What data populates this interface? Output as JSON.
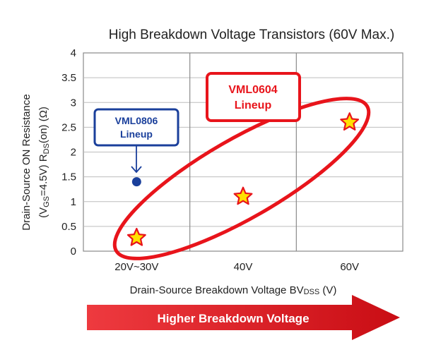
{
  "chart_data": {
    "type": "scatter",
    "title": "High Breakdown Voltage Transistors (60V Max.)",
    "xlabel": {
      "main": "Drain-Source Breakdown Voltage BV",
      "sub": "DSS",
      "unit": " (V)"
    },
    "ylabel": {
      "line1": "Drain-Source ON Resistance",
      "line2_prefix": "(V",
      "line2_gs_sub": "GS",
      "line2_mid": "=4.5V)  R",
      "line2_ds_sub": "DS",
      "line2_suffix": "(on) (Ω)"
    },
    "categories": [
      "20V~30V",
      "40V",
      "60V"
    ],
    "ylim": [
      0,
      4
    ],
    "yticks": [
      "0",
      "0.5",
      "1",
      "1.5",
      "2",
      "2.5",
      "3",
      "3.5",
      "4"
    ],
    "grid": true,
    "series": [
      {
        "name": "VML0806 Lineup",
        "marker": "circle",
        "color": "#1a3f9b",
        "points": [
          {
            "x": "20V~30V",
            "y": 1.4
          }
        ]
      },
      {
        "name": "VML0604 Lineup",
        "marker": "star",
        "color": "#ffe100",
        "points": [
          {
            "x": "20V~30V",
            "y": 0.27
          },
          {
            "x": "40V",
            "y": 1.1
          },
          {
            "x": "60V",
            "y": 2.6
          }
        ]
      }
    ],
    "annotations": {
      "vml0806": {
        "line1": "VML0806",
        "line2": "Lineup",
        "color": "#1a3f9b"
      },
      "vml0604": {
        "line1": "VML0604",
        "line2": "Lineup",
        "color": "#e8141b"
      }
    },
    "banner": {
      "text": "Higher Breakdown Voltage",
      "color": "#e8141b"
    }
  }
}
